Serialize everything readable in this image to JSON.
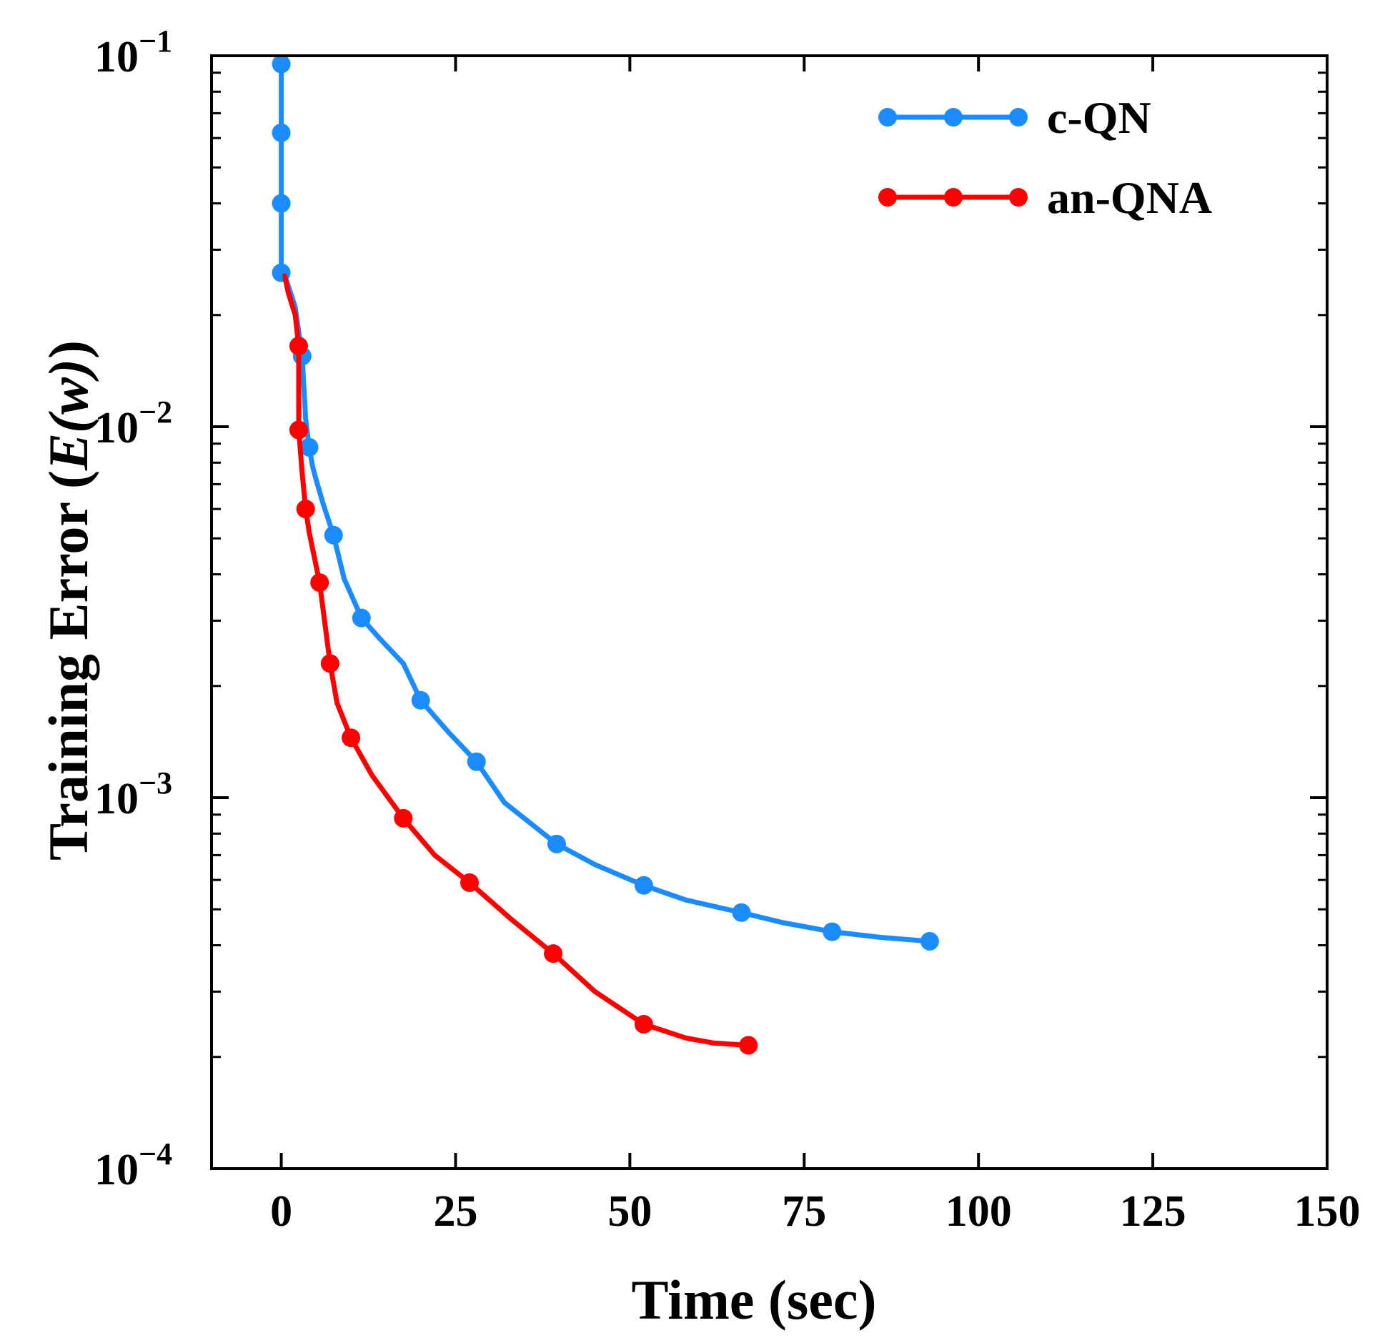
{
  "chart_data": {
    "type": "line",
    "xlabel": "Time (sec)",
    "ylabel": "Training Error (E(w))",
    "ylabel_parts": {
      "prefix": "Training Error (",
      "math": "E(w)",
      "suffix": ")"
    },
    "xlim": [
      -10,
      150
    ],
    "ylim": [
      0.0001,
      0.1
    ],
    "yscale": "log",
    "x_ticks": [
      0,
      25,
      50,
      75,
      100,
      125,
      150
    ],
    "y_ticks": [
      {
        "value": 0.1,
        "base": "10",
        "exp": "−1"
      },
      {
        "value": 0.01,
        "base": "10",
        "exp": "−2"
      },
      {
        "value": 0.001,
        "base": "10",
        "exp": "−3"
      },
      {
        "value": 0.0001,
        "base": "10",
        "exp": "−4"
      }
    ],
    "legend_position": "top-right",
    "series": [
      {
        "name": "c-QN",
        "color": "#1a8cff",
        "x": [
          0,
          0,
          0,
          0,
          3,
          4,
          7.5,
          11.5,
          20,
          28,
          39.5,
          52,
          66,
          79,
          93
        ],
        "y": [
          0.095,
          0.062,
          0.04,
          0.026,
          0.0155,
          0.0088,
          0.0051,
          0.00305,
          0.00183,
          0.00125,
          0.00075,
          0.00058,
          0.00049,
          0.000435,
          0.00041
        ],
        "path_x": [
          0,
          0,
          0,
          0,
          0.5,
          1,
          2,
          3,
          3.5,
          4,
          4.5,
          5,
          6,
          7.5,
          9,
          11.5,
          14,
          17.5,
          20,
          24,
          28,
          32,
          39.5,
          45,
          52,
          58,
          66,
          72,
          79,
          86,
          93
        ],
        "path_y": [
          0.095,
          0.062,
          0.04,
          0.026,
          0.0255,
          0.024,
          0.021,
          0.0155,
          0.0105,
          0.0088,
          0.0078,
          0.0072,
          0.0062,
          0.0051,
          0.0039,
          0.00305,
          0.0027,
          0.0023,
          0.00183,
          0.0015,
          0.00125,
          0.00097,
          0.00075,
          0.00066,
          0.00058,
          0.00053,
          0.00049,
          0.00046,
          0.000435,
          0.00042,
          0.00041
        ]
      },
      {
        "name": "an-QNA",
        "color": "#ff0000",
        "x": [
          2.5,
          2.5,
          3.5,
          5.5,
          7,
          10,
          17.5,
          27,
          39,
          52,
          67
        ],
        "y": [
          0.0165,
          0.0098,
          0.006,
          0.0038,
          0.0023,
          0.00145,
          0.00088,
          0.00059,
          0.00038,
          0.000245,
          0.000215
        ],
        "path_x": [
          0.5,
          1,
          2,
          2.5,
          2.5,
          3,
          3.5,
          4,
          5.5,
          7,
          8,
          10,
          13,
          17.5,
          22,
          27,
          33,
          39,
          45,
          52,
          58,
          62,
          67
        ],
        "path_y": [
          0.0255,
          0.023,
          0.02,
          0.0165,
          0.0098,
          0.0075,
          0.006,
          0.0052,
          0.0038,
          0.0023,
          0.0018,
          0.00145,
          0.00115,
          0.00088,
          0.0007,
          0.00059,
          0.00047,
          0.00038,
          0.0003,
          0.000245,
          0.000225,
          0.000218,
          0.000215
        ]
      }
    ]
  }
}
